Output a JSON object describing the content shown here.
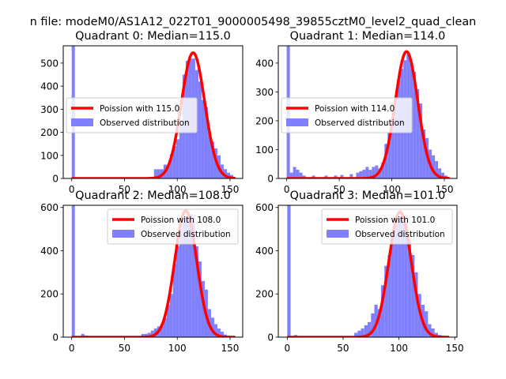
{
  "figure_title": "n file: modeM0/AS1A12_022T01_9000005498_39855cztM0_level2_quad_clean",
  "chart_data": [
    {
      "type": "bar",
      "title": "Quadrant 0: Median=115.0",
      "xlim": [
        -8,
        162
      ],
      "ylim": [
        0,
        575
      ],
      "xticks": [
        0,
        50,
        100,
        150
      ],
      "yticks": [
        0,
        100,
        200,
        300,
        400,
        500
      ],
      "legend": {
        "placement": "center-left",
        "entries": [
          "Poission with 115.0",
          "Observed distribution"
        ]
      },
      "histogram": {
        "name": "Observed distribution",
        "color": "#8080ff",
        "bin_width": 3,
        "bins": [
          {
            "x": 0,
            "y": 575
          },
          {
            "x": 3,
            "y": 5
          },
          {
            "x": 6,
            "y": 4
          },
          {
            "x": 9,
            "y": 3
          },
          {
            "x": 78,
            "y": 40
          },
          {
            "x": 81,
            "y": 40
          },
          {
            "x": 84,
            "y": 40
          },
          {
            "x": 87,
            "y": 60
          },
          {
            "x": 90,
            "y": 55
          },
          {
            "x": 93,
            "y": 105
          },
          {
            "x": 96,
            "y": 140
          },
          {
            "x": 99,
            "y": 170
          },
          {
            "x": 102,
            "y": 230
          },
          {
            "x": 105,
            "y": 450
          },
          {
            "x": 108,
            "y": 510
          },
          {
            "x": 111,
            "y": 520
          },
          {
            "x": 114,
            "y": 520
          },
          {
            "x": 117,
            "y": 470
          },
          {
            "x": 120,
            "y": 420
          },
          {
            "x": 123,
            "y": 340
          },
          {
            "x": 126,
            "y": 310
          },
          {
            "x": 129,
            "y": 200
          },
          {
            "x": 132,
            "y": 160
          },
          {
            "x": 135,
            "y": 130
          },
          {
            "x": 138,
            "y": 100
          },
          {
            "x": 141,
            "y": 60
          },
          {
            "x": 144,
            "y": 40
          },
          {
            "x": 147,
            "y": 25
          },
          {
            "x": 150,
            "y": 15
          }
        ]
      },
      "curve": {
        "name": "Poission with 115.0",
        "color": "#ff0000",
        "mean": 115,
        "peak": 545,
        "sigma": 11.0,
        "x_range": [
          0,
          155
        ]
      }
    },
    {
      "type": "bar",
      "title": "Quadrant 1: Median=114.0",
      "xlim": [
        -8,
        162
      ],
      "ylim": [
        0,
        460
      ],
      "xticks": [
        0,
        50,
        100,
        150
      ],
      "yticks": [
        0,
        100,
        200,
        300,
        400
      ],
      "legend": {
        "placement": "center-left",
        "entries": [
          "Poission with 114.0",
          "Observed distribution"
        ]
      },
      "histogram": {
        "name": "Observed distribution",
        "color": "#8080ff",
        "bin_width": 3,
        "bins": [
          {
            "x": 0,
            "y": 460
          },
          {
            "x": 3,
            "y": 20
          },
          {
            "x": 6,
            "y": 40
          },
          {
            "x": 9,
            "y": 30
          },
          {
            "x": 12,
            "y": 20
          },
          {
            "x": 15,
            "y": 10
          },
          {
            "x": 24,
            "y": 10
          },
          {
            "x": 36,
            "y": 10
          },
          {
            "x": 45,
            "y": 10
          },
          {
            "x": 51,
            "y": 12
          },
          {
            "x": 60,
            "y": 15
          },
          {
            "x": 66,
            "y": 20
          },
          {
            "x": 69,
            "y": 25
          },
          {
            "x": 72,
            "y": 30
          },
          {
            "x": 75,
            "y": 40
          },
          {
            "x": 78,
            "y": 30
          },
          {
            "x": 81,
            "y": 40
          },
          {
            "x": 84,
            "y": 45
          },
          {
            "x": 87,
            "y": 35
          },
          {
            "x": 90,
            "y": 55
          },
          {
            "x": 93,
            "y": 120
          },
          {
            "x": 96,
            "y": 160
          },
          {
            "x": 99,
            "y": 200
          },
          {
            "x": 102,
            "y": 250
          },
          {
            "x": 105,
            "y": 340
          },
          {
            "x": 108,
            "y": 380
          },
          {
            "x": 111,
            "y": 410
          },
          {
            "x": 114,
            "y": 430
          },
          {
            "x": 117,
            "y": 400
          },
          {
            "x": 120,
            "y": 370
          },
          {
            "x": 123,
            "y": 310
          },
          {
            "x": 126,
            "y": 260
          },
          {
            "x": 129,
            "y": 170
          },
          {
            "x": 132,
            "y": 140
          },
          {
            "x": 135,
            "y": 100
          },
          {
            "x": 138,
            "y": 80
          },
          {
            "x": 141,
            "y": 60
          },
          {
            "x": 144,
            "y": 35
          },
          {
            "x": 147,
            "y": 20
          },
          {
            "x": 150,
            "y": 10
          }
        ]
      },
      "curve": {
        "name": "Poission with 114.0",
        "color": "#ff0000",
        "mean": 114,
        "peak": 440,
        "sigma": 10.7,
        "x_range": [
          0,
          155
        ]
      }
    },
    {
      "type": "bar",
      "title": "Quadrant 2: Median=108.0",
      "xlim": [
        -8,
        162
      ],
      "ylim": [
        0,
        610
      ],
      "xticks": [
        0,
        50,
        100,
        150
      ],
      "yticks": [
        0,
        200,
        400,
        600
      ],
      "legend": {
        "placement": "top-right",
        "entries": [
          "Poission with 108.0",
          "Observed distribution"
        ]
      },
      "histogram": {
        "name": "Observed distribution",
        "color": "#8080ff",
        "bin_width": 3,
        "bins": [
          {
            "x": 0,
            "y": 610
          },
          {
            "x": 9,
            "y": 15
          },
          {
            "x": 12,
            "y": 8
          },
          {
            "x": 15,
            "y": 4
          },
          {
            "x": 24,
            "y": 4
          },
          {
            "x": 33,
            "y": 4
          },
          {
            "x": 45,
            "y": 4
          },
          {
            "x": 60,
            "y": 6
          },
          {
            "x": 66,
            "y": 15
          },
          {
            "x": 69,
            "y": 15
          },
          {
            "x": 72,
            "y": 20
          },
          {
            "x": 75,
            "y": 30
          },
          {
            "x": 78,
            "y": 40
          },
          {
            "x": 81,
            "y": 50
          },
          {
            "x": 84,
            "y": 60
          },
          {
            "x": 87,
            "y": 90
          },
          {
            "x": 90,
            "y": 150
          },
          {
            "x": 93,
            "y": 200
          },
          {
            "x": 96,
            "y": 340
          },
          {
            "x": 99,
            "y": 420
          },
          {
            "x": 102,
            "y": 500
          },
          {
            "x": 105,
            "y": 560
          },
          {
            "x": 108,
            "y": 560
          },
          {
            "x": 111,
            "y": 570
          },
          {
            "x": 114,
            "y": 540
          },
          {
            "x": 117,
            "y": 420
          },
          {
            "x": 120,
            "y": 350
          },
          {
            "x": 123,
            "y": 260
          },
          {
            "x": 126,
            "y": 220
          },
          {
            "x": 129,
            "y": 130
          },
          {
            "x": 132,
            "y": 90
          },
          {
            "x": 135,
            "y": 60
          },
          {
            "x": 138,
            "y": 40
          },
          {
            "x": 141,
            "y": 25
          },
          {
            "x": 144,
            "y": 12
          },
          {
            "x": 147,
            "y": 6
          }
        ]
      },
      "curve": {
        "name": "Poission with 108.0",
        "color": "#ff0000",
        "mean": 108,
        "peak": 585,
        "sigma": 10.4,
        "x_range": [
          0,
          155
        ]
      }
    },
    {
      "type": "bar",
      "title": "Quadrant 3: Median=101.0",
      "xlim": [
        -8,
        152
      ],
      "ylim": [
        0,
        610
      ],
      "xticks": [
        0,
        50,
        100,
        150
      ],
      "yticks": [
        0,
        200,
        400,
        600
      ],
      "legend": {
        "placement": "top-right",
        "entries": [
          "Poission with 101.0",
          "Observed distribution"
        ]
      },
      "histogram": {
        "name": "Observed distribution",
        "color": "#8080ff",
        "bin_width": 3,
        "bins": [
          {
            "x": 0,
            "y": 610
          },
          {
            "x": 6,
            "y": 10
          },
          {
            "x": 9,
            "y": 5
          },
          {
            "x": 45,
            "y": 4
          },
          {
            "x": 60,
            "y": 20
          },
          {
            "x": 63,
            "y": 30
          },
          {
            "x": 66,
            "y": 40
          },
          {
            "x": 69,
            "y": 55
          },
          {
            "x": 72,
            "y": 70
          },
          {
            "x": 75,
            "y": 110
          },
          {
            "x": 78,
            "y": 150
          },
          {
            "x": 81,
            "y": 130
          },
          {
            "x": 84,
            "y": 240
          },
          {
            "x": 87,
            "y": 330
          },
          {
            "x": 90,
            "y": 380
          },
          {
            "x": 93,
            "y": 470
          },
          {
            "x": 96,
            "y": 540
          },
          {
            "x": 99,
            "y": 550
          },
          {
            "x": 102,
            "y": 560
          },
          {
            "x": 105,
            "y": 540
          },
          {
            "x": 108,
            "y": 450
          },
          {
            "x": 111,
            "y": 380
          },
          {
            "x": 114,
            "y": 300
          },
          {
            "x": 117,
            "y": 200
          },
          {
            "x": 120,
            "y": 150
          },
          {
            "x": 123,
            "y": 120
          },
          {
            "x": 126,
            "y": 60
          },
          {
            "x": 129,
            "y": 40
          },
          {
            "x": 132,
            "y": 20
          },
          {
            "x": 135,
            "y": 10
          },
          {
            "x": 138,
            "y": 6
          }
        ]
      },
      "curve": {
        "name": "Poission with 101.0",
        "color": "#ff0000",
        "mean": 101,
        "peak": 580,
        "sigma": 10.0,
        "x_range": [
          0,
          145
        ]
      }
    }
  ]
}
